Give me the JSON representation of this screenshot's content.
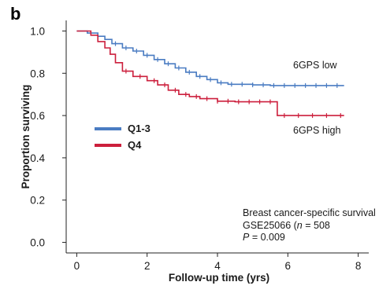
{
  "chart_data": {
    "type": "line",
    "panel_label": "b",
    "xlabel": "Follow-up time (yrs)",
    "ylabel": "Proportion surviving",
    "xlim": [
      -0.3,
      8.3
    ],
    "ylim": [
      -0.05,
      1.05
    ],
    "x_ticks": [
      0,
      2,
      4,
      6,
      8
    ],
    "x_tick_labels": [
      "0",
      "2",
      "4",
      "6",
      "8"
    ],
    "y_ticks": [
      0.0,
      0.2,
      0.4,
      0.6,
      0.8,
      1.0
    ],
    "y_tick_labels": [
      "0.0",
      "0.2",
      "0.4",
      "0.6",
      "0.8",
      "1.0"
    ],
    "grid": false,
    "legend_position": "left-middle",
    "series": [
      {
        "name": "Q1-3",
        "color": "#4a7cc2",
        "step_points": [
          [
            0,
            1.0
          ],
          [
            0.3,
            0.99
          ],
          [
            0.6,
            0.975
          ],
          [
            0.8,
            0.96
          ],
          [
            1.0,
            0.94
          ],
          [
            1.3,
            0.92
          ],
          [
            1.6,
            0.905
          ],
          [
            1.9,
            0.885
          ],
          [
            2.2,
            0.865
          ],
          [
            2.5,
            0.845
          ],
          [
            2.8,
            0.825
          ],
          [
            3.1,
            0.805
          ],
          [
            3.4,
            0.785
          ],
          [
            3.7,
            0.77
          ],
          [
            4.0,
            0.755
          ],
          [
            4.3,
            0.748
          ],
          [
            5.0,
            0.745
          ],
          [
            5.5,
            0.742
          ],
          [
            6.0,
            0.742
          ],
          [
            7.6,
            0.742
          ]
        ],
        "censor_marks": [
          1.1,
          1.4,
          1.7,
          2.0,
          2.3,
          2.6,
          2.9,
          3.2,
          3.5,
          3.8,
          4.1,
          4.4,
          4.7,
          5.0,
          5.3,
          5.6,
          5.9,
          6.2,
          6.5,
          6.8,
          7.1,
          7.4
        ]
      },
      {
        "name": "Q4",
        "color": "#cc1f3c",
        "step_points": [
          [
            0,
            1.0
          ],
          [
            0.4,
            0.98
          ],
          [
            0.6,
            0.95
          ],
          [
            0.8,
            0.92
          ],
          [
            0.95,
            0.89
          ],
          [
            1.1,
            0.85
          ],
          [
            1.3,
            0.81
          ],
          [
            1.6,
            0.785
          ],
          [
            2.0,
            0.765
          ],
          [
            2.3,
            0.745
          ],
          [
            2.6,
            0.72
          ],
          [
            2.9,
            0.7
          ],
          [
            3.2,
            0.69
          ],
          [
            3.5,
            0.68
          ],
          [
            4.0,
            0.668
          ],
          [
            4.5,
            0.665
          ],
          [
            5.7,
            0.665
          ],
          [
            5.7,
            0.6
          ],
          [
            7.6,
            0.6
          ]
        ],
        "censor_marks": [
          1.4,
          1.8,
          2.2,
          2.5,
          2.8,
          3.1,
          3.4,
          3.7,
          4.0,
          4.3,
          4.6,
          4.9,
          5.2,
          5.5,
          5.9,
          6.3,
          6.7,
          7.1,
          7.5
        ]
      }
    ],
    "labels": {
      "low": "6GPS low",
      "high": "6GPS high",
      "note_line1": "Breast cancer-specific survival",
      "note_line2_a": "GSE25066 (",
      "note_line2_n": "n",
      "note_line2_b": " = 508",
      "note_line3_p": "P",
      "note_line3_b": " = 0.009"
    }
  }
}
